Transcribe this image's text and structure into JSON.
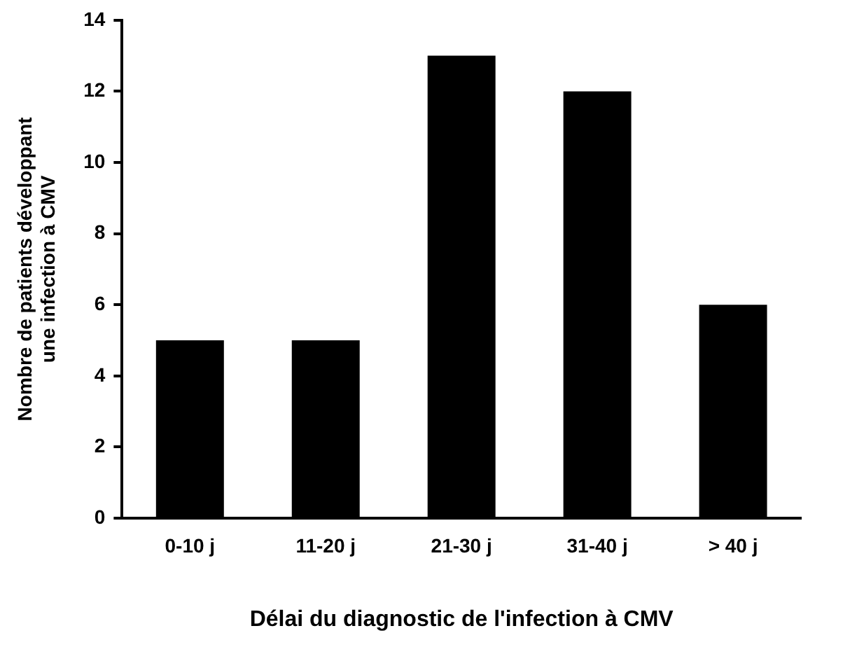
{
  "chart_data": {
    "type": "bar",
    "xlabel": "Délai du diagnostic de l'infection à CMV",
    "ylabel": "Nombre de patients développant\nune infection à CMV",
    "categories": [
      "0-10 j",
      "11-20 j",
      "21-30 j",
      "31-40 j",
      "> 40 j"
    ],
    "values": [
      5,
      5,
      13,
      12,
      6
    ],
    "color": "#000000",
    "ylim": [
      0,
      14
    ],
    "yticks": [
      0,
      2,
      4,
      6,
      8,
      10,
      12,
      14
    ],
    "grid": false,
    "legend": false
  }
}
